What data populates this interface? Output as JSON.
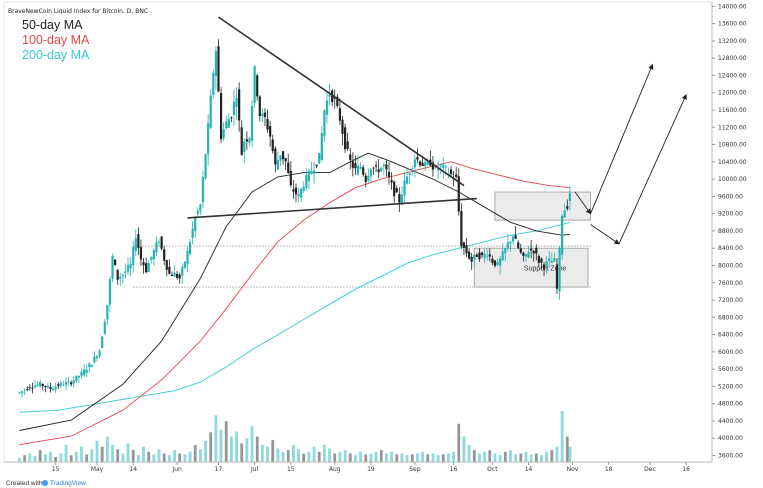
{
  "chart_data": {
    "type": "candlestick",
    "title": "BraveNewCoin Liquid Index for Bitcoin, D, BNC",
    "legend": [
      {
        "name": "50-day MA",
        "color": "#222222"
      },
      {
        "name": "100-day MA",
        "color": "#e8454a"
      },
      {
        "name": "200-day MA",
        "color": "#33cccc"
      }
    ],
    "y_axis": {
      "ticks": [
        3600,
        4000,
        4400,
        4800,
        5200,
        5600,
        6000,
        6400,
        6800,
        7200,
        7600,
        8000,
        8400,
        8800,
        9200,
        9600,
        10000,
        10400,
        10800,
        11200,
        11600,
        12000,
        12400,
        12800,
        13200,
        13600,
        14000
      ],
      "ylim": [
        3450,
        14100
      ],
      "side": "right"
    },
    "x_axis": {
      "labels": [
        "15",
        "May",
        "14",
        "Jun",
        "17",
        "Jul",
        "15",
        "Aug",
        "19",
        "Sep",
        "16",
        "Oct",
        "14",
        "Nov",
        "18",
        "Dec",
        "16"
      ],
      "label_days": [
        14,
        30,
        44,
        61,
        77,
        91,
        105,
        122,
        136,
        153,
        168,
        183,
        197,
        214,
        228,
        244,
        258
      ]
    },
    "price": {
      "segments": [
        [
          0,
          5050
        ],
        [
          4,
          5200
        ],
        [
          8,
          5250
        ],
        [
          12,
          5150
        ],
        [
          16,
          5250
        ],
        [
          20,
          5300
        ],
        [
          24,
          5500
        ],
        [
          28,
          5750
        ],
        [
          31,
          6050
        ],
        [
          34,
          7100
        ],
        [
          36,
          8200
        ],
        [
          38,
          7700
        ],
        [
          40,
          7800
        ],
        [
          43,
          8000
        ],
        [
          45,
          8700
        ],
        [
          47,
          8150
        ],
        [
          49,
          7900
        ],
        [
          51,
          8200
        ],
        [
          54,
          8600
        ],
        [
          56,
          8150
        ],
        [
          58,
          7800
        ],
        [
          60,
          7800
        ],
        [
          62,
          7700
        ],
        [
          65,
          8300
        ],
        [
          68,
          9100
        ],
        [
          70,
          9400
        ],
        [
          73,
          11200
        ],
        [
          75,
          12500
        ],
        [
          76,
          13000
        ],
        [
          78,
          11000
        ],
        [
          80,
          11300
        ],
        [
          82,
          11500
        ],
        [
          84,
          12000
        ],
        [
          86,
          10600
        ],
        [
          87,
          10900
        ],
        [
          89,
          11000
        ],
        [
          91,
          12500
        ],
        [
          93,
          11500
        ],
        [
          95,
          11400
        ],
        [
          97,
          11000
        ],
        [
          99,
          10300
        ],
        [
          101,
          10600
        ],
        [
          103,
          10400
        ],
        [
          105,
          9800
        ],
        [
          108,
          9600
        ],
        [
          110,
          9900
        ],
        [
          112,
          10100
        ],
        [
          114,
          10300
        ],
        [
          116,
          10500
        ],
        [
          118,
          11600
        ],
        [
          120,
          12000
        ],
        [
          122,
          11800
        ],
        [
          124,
          11400
        ],
        [
          126,
          10800
        ],
        [
          128,
          10400
        ],
        [
          130,
          10200
        ],
        [
          132,
          10300
        ],
        [
          134,
          10000
        ],
        [
          136,
          10300
        ],
        [
          138,
          10200
        ],
        [
          141,
          10300
        ],
        [
          143,
          10000
        ],
        [
          145,
          9700
        ],
        [
          147,
          9500
        ],
        [
          149,
          9900
        ],
        [
          151,
          10200
        ],
        [
          153,
          10500
        ],
        [
          155,
          10400
        ],
        [
          157,
          10300
        ],
        [
          159,
          10400
        ],
        [
          161,
          10200
        ],
        [
          163,
          10300
        ],
        [
          165,
          10200
        ],
        [
          167,
          10100
        ],
        [
          169,
          10000
        ],
        [
          171,
          8500
        ],
        [
          173,
          8300
        ],
        [
          175,
          8100
        ],
        [
          177,
          8250
        ],
        [
          179,
          8200
        ],
        [
          181,
          8300
        ],
        [
          183,
          8100
        ],
        [
          185,
          8000
        ],
        [
          187,
          8250
        ],
        [
          189,
          8500
        ],
        [
          191,
          8700
        ],
        [
          193,
          8400
        ],
        [
          195,
          8150
        ],
        [
          197,
          8350
        ],
        [
          199,
          8350
        ],
        [
          201,
          8100
        ],
        [
          203,
          8000
        ],
        [
          205,
          8100
        ],
        [
          207,
          8100
        ],
        [
          208,
          7450
        ],
        [
          210,
          9200
        ],
        [
          212,
          9400
        ],
        [
          213,
          9700
        ]
      ],
      "last_day": 213,
      "volatility_note": "daily OHLC approximated from visible candles"
    },
    "ma50": [
      [
        0,
        4180
      ],
      [
        20,
        4420
      ],
      [
        40,
        5250
      ],
      [
        55,
        6250
      ],
      [
        70,
        7700
      ],
      [
        80,
        8900
      ],
      [
        90,
        9700
      ],
      [
        100,
        10050
      ],
      [
        110,
        10150
      ],
      [
        120,
        10150
      ],
      [
        128,
        10400
      ],
      [
        135,
        10600
      ],
      [
        142,
        10450
      ],
      [
        150,
        10250
      ],
      [
        160,
        10000
      ],
      [
        170,
        9700
      ],
      [
        180,
        9350
      ],
      [
        190,
        9000
      ],
      [
        200,
        8800
      ],
      [
        210,
        8700
      ],
      [
        213,
        8720
      ]
    ],
    "ma100": [
      [
        0,
        3850
      ],
      [
        20,
        4050
      ],
      [
        40,
        4650
      ],
      [
        55,
        5350
      ],
      [
        70,
        6250
      ],
      [
        80,
        7000
      ],
      [
        90,
        7800
      ],
      [
        100,
        8550
      ],
      [
        110,
        9050
      ],
      [
        120,
        9450
      ],
      [
        130,
        9800
      ],
      [
        140,
        10000
      ],
      [
        150,
        10150
      ],
      [
        160,
        10300
      ],
      [
        167,
        10400
      ],
      [
        175,
        10250
      ],
      [
        185,
        10100
      ],
      [
        195,
        9950
      ],
      [
        205,
        9850
      ],
      [
        213,
        9800
      ]
    ],
    "ma200": [
      [
        0,
        4600
      ],
      [
        15,
        4650
      ],
      [
        30,
        4800
      ],
      [
        45,
        4950
      ],
      [
        60,
        5100
      ],
      [
        70,
        5300
      ],
      [
        80,
        5650
      ],
      [
        90,
        6050
      ],
      [
        100,
        6400
      ],
      [
        110,
        6750
      ],
      [
        120,
        7100
      ],
      [
        130,
        7450
      ],
      [
        140,
        7750
      ],
      [
        150,
        8050
      ],
      [
        160,
        8250
      ],
      [
        170,
        8400
      ],
      [
        180,
        8550
      ],
      [
        190,
        8700
      ],
      [
        200,
        8800
      ],
      [
        210,
        8950
      ],
      [
        213,
        9000
      ]
    ],
    "volume": {
      "max": 100,
      "bars": [
        [
          0,
          5
        ],
        [
          2,
          8
        ],
        [
          4,
          10
        ],
        [
          6,
          7
        ],
        [
          8,
          14
        ],
        [
          10,
          9
        ],
        [
          12,
          12
        ],
        [
          14,
          6
        ],
        [
          16,
          10
        ],
        [
          18,
          20
        ],
        [
          20,
          8
        ],
        [
          22,
          12
        ],
        [
          24,
          18
        ],
        [
          26,
          9
        ],
        [
          28,
          15
        ],
        [
          30,
          25
        ],
        [
          32,
          18
        ],
        [
          34,
          30
        ],
        [
          36,
          20
        ],
        [
          38,
          15
        ],
        [
          40,
          10
        ],
        [
          42,
          22
        ],
        [
          44,
          14
        ],
        [
          46,
          8
        ],
        [
          48,
          18
        ],
        [
          50,
          12
        ],
        [
          52,
          9
        ],
        [
          54,
          15
        ],
        [
          56,
          10
        ],
        [
          58,
          8
        ],
        [
          60,
          14
        ],
        [
          62,
          10
        ],
        [
          64,
          9
        ],
        [
          66,
          12
        ],
        [
          68,
          20
        ],
        [
          70,
          15
        ],
        [
          72,
          25
        ],
        [
          74,
          35
        ],
        [
          76,
          55
        ],
        [
          78,
          38
        ],
        [
          80,
          48
        ],
        [
          82,
          30
        ],
        [
          84,
          36
        ],
        [
          86,
          22
        ],
        [
          88,
          28
        ],
        [
          90,
          42
        ],
        [
          92,
          30
        ],
        [
          94,
          20
        ],
        [
          96,
          18
        ],
        [
          98,
          26
        ],
        [
          100,
          16
        ],
        [
          102,
          12
        ],
        [
          104,
          14
        ],
        [
          106,
          20
        ],
        [
          108,
          15
        ],
        [
          110,
          10
        ],
        [
          112,
          12
        ],
        [
          114,
          18
        ],
        [
          116,
          12
        ],
        [
          118,
          20
        ],
        [
          120,
          16
        ],
        [
          122,
          10
        ],
        [
          124,
          12
        ],
        [
          126,
          14
        ],
        [
          128,
          10
        ],
        [
          130,
          8
        ],
        [
          132,
          12
        ],
        [
          134,
          9
        ],
        [
          136,
          10
        ],
        [
          138,
          12
        ],
        [
          140,
          14
        ],
        [
          142,
          10
        ],
        [
          144,
          12
        ],
        [
          146,
          9
        ],
        [
          148,
          10
        ],
        [
          150,
          8
        ],
        [
          152,
          9
        ],
        [
          154,
          10
        ],
        [
          156,
          12
        ],
        [
          158,
          9
        ],
        [
          160,
          10
        ],
        [
          162,
          8
        ],
        [
          164,
          9
        ],
        [
          166,
          10
        ],
        [
          168,
          12
        ],
        [
          170,
          45
        ],
        [
          172,
          30
        ],
        [
          174,
          20
        ],
        [
          176,
          14
        ],
        [
          178,
          10
        ],
        [
          180,
          12
        ],
        [
          182,
          14
        ],
        [
          184,
          10
        ],
        [
          186,
          8
        ],
        [
          188,
          12
        ],
        [
          190,
          14
        ],
        [
          192,
          9
        ],
        [
          194,
          10
        ],
        [
          196,
          12
        ],
        [
          198,
          9
        ],
        [
          200,
          10
        ],
        [
          202,
          8
        ],
        [
          204,
          12
        ],
        [
          206,
          14
        ],
        [
          208,
          18
        ],
        [
          210,
          60
        ],
        [
          212,
          30
        ],
        [
          213,
          18
        ]
      ]
    },
    "annotations": {
      "triangle_upper": [
        [
          77,
          13750
        ],
        [
          172,
          9850
        ]
      ],
      "triangle_lower": [
        [
          65,
          9100
        ],
        [
          177,
          9550
        ]
      ],
      "support_zone": {
        "label": "Support Zone",
        "x": [
          176,
          220
        ],
        "y": [
          7500,
          8400
        ]
      },
      "resistance_box": {
        "x": [
          184,
          221
        ],
        "y": [
          9050,
          9700
        ]
      },
      "dotted_levels": [
        8450,
        7500
      ],
      "arrows": [
        [
          [
            215,
            9700
          ],
          [
            221,
            9200
          ]
        ],
        [
          [
            221,
            9200
          ],
          [
            245,
            12650
          ]
        ],
        [
          [
            221,
            8950
          ],
          [
            232,
            8500
          ]
        ],
        [
          [
            232,
            8500
          ],
          [
            258,
            11950
          ]
        ]
      ]
    }
  },
  "footer": {
    "created_with": "Created with",
    "brand": "TradingView"
  },
  "colors": {
    "up": "#26b3b3",
    "down": "#222222",
    "vol_up": "#7fd6d6",
    "vol_down": "#8a8a8a",
    "ma50": "#222222",
    "ma100": "#e8454a",
    "ma200": "#33cccc"
  }
}
